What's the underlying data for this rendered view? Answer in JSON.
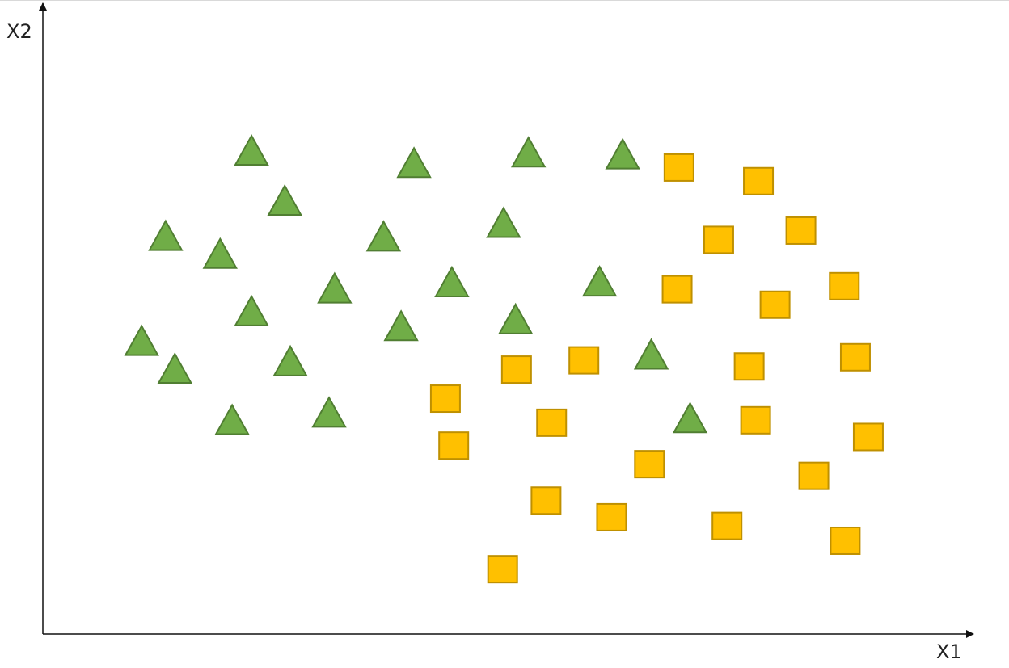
{
  "chart_data": {
    "type": "scatter",
    "title": "",
    "xlabel": "X1",
    "ylabel": "X2",
    "xlim": [
      0,
      100
    ],
    "ylim": [
      0,
      100
    ],
    "grid": false,
    "legend": "none",
    "series": [
      {
        "marker": "triangle",
        "color": "#70ad47",
        "edge_color": "#507e32",
        "points": [
          {
            "x": 22.6,
            "y": 78.3
          },
          {
            "x": 40.2,
            "y": 76.3
          },
          {
            "x": 52.6,
            "y": 78.0
          },
          {
            "x": 62.8,
            "y": 77.7
          },
          {
            "x": 26.2,
            "y": 70.2
          },
          {
            "x": 13.3,
            "y": 64.5
          },
          {
            "x": 19.2,
            "y": 61.6
          },
          {
            "x": 36.9,
            "y": 64.4
          },
          {
            "x": 49.9,
            "y": 66.6
          },
          {
            "x": 60.3,
            "y": 57.1
          },
          {
            "x": 31.6,
            "y": 56.0
          },
          {
            "x": 44.3,
            "y": 57.0
          },
          {
            "x": 22.6,
            "y": 52.3
          },
          {
            "x": 38.8,
            "y": 49.9
          },
          {
            "x": 51.2,
            "y": 51.0
          },
          {
            "x": 10.7,
            "y": 47.5
          },
          {
            "x": 14.3,
            "y": 43.0
          },
          {
            "x": 26.8,
            "y": 44.2
          },
          {
            "x": 65.9,
            "y": 45.3
          },
          {
            "x": 20.5,
            "y": 34.7
          },
          {
            "x": 31.0,
            "y": 35.9
          },
          {
            "x": 70.1,
            "y": 35.0
          }
        ]
      },
      {
        "marker": "square",
        "color": "#ffc000",
        "edge_color": "#bf9000",
        "points": [
          {
            "x": 68.9,
            "y": 75.5
          },
          {
            "x": 77.5,
            "y": 73.3
          },
          {
            "x": 73.2,
            "y": 63.8
          },
          {
            "x": 82.1,
            "y": 65.3
          },
          {
            "x": 68.7,
            "y": 55.8
          },
          {
            "x": 79.3,
            "y": 53.3
          },
          {
            "x": 86.8,
            "y": 56.3
          },
          {
            "x": 51.3,
            "y": 42.8
          },
          {
            "x": 58.6,
            "y": 44.3
          },
          {
            "x": 76.5,
            "y": 43.3
          },
          {
            "x": 88.0,
            "y": 44.8
          },
          {
            "x": 43.6,
            "y": 38.1
          },
          {
            "x": 55.1,
            "y": 34.2
          },
          {
            "x": 77.2,
            "y": 34.6
          },
          {
            "x": 89.4,
            "y": 31.9
          },
          {
            "x": 44.5,
            "y": 30.5
          },
          {
            "x": 65.7,
            "y": 27.5
          },
          {
            "x": 83.5,
            "y": 25.6
          },
          {
            "x": 54.5,
            "y": 21.6
          },
          {
            "x": 61.6,
            "y": 18.9
          },
          {
            "x": 74.1,
            "y": 17.5
          },
          {
            "x": 86.9,
            "y": 15.1
          },
          {
            "x": 49.8,
            "y": 10.5
          }
        ]
      }
    ]
  }
}
